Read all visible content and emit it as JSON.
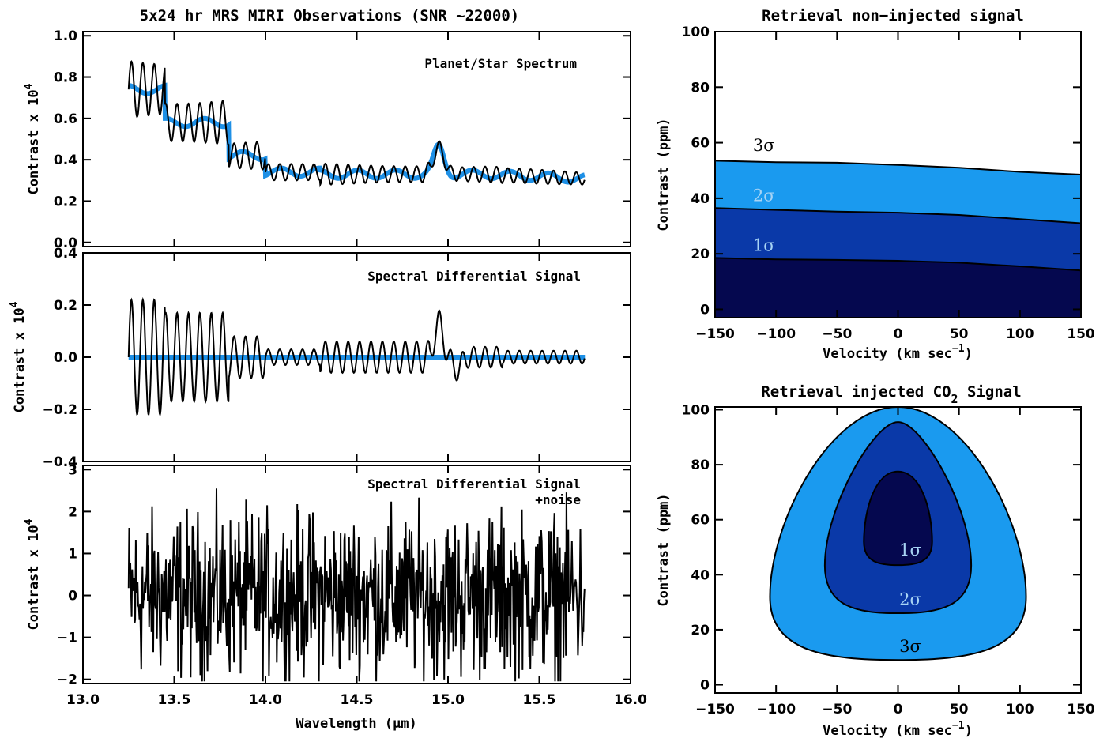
{
  "chart_data": [
    {
      "type": "line",
      "title": "5x24 hr MRS MIRI Observations (SNR ~22000)",
      "annotation": "Planet/Star Spectrum",
      "ylabel": "Contrast x 10",
      "ylabel_exp": "4",
      "xlim": [
        13.0,
        16.0
      ],
      "ylim": [
        -0.02,
        1.02
      ],
      "xticks": [
        13.0,
        13.5,
        14.0,
        14.5,
        15.0,
        15.5,
        16.0
      ],
      "yticks": [
        0.0,
        0.2,
        0.4,
        0.6,
        0.8,
        1.0
      ],
      "ytick_labels": [
        "0.0",
        "0.2",
        "0.4",
        "0.6",
        "0.8",
        "1.0"
      ],
      "series": [
        {
          "color": "#1e90e6",
          "x_range": [
            13.25,
            15.75
          ],
          "style": "smoothed model"
        },
        {
          "color": "#000000",
          "x_range": [
            13.25,
            15.75
          ],
          "style": "high-resolution spectrum"
        }
      ]
    },
    {
      "type": "line",
      "title": "",
      "annotation": "Spectral Differential Signal",
      "ylabel": "Contrast x 10",
      "ylabel_exp": "4",
      "xlim": [
        13.0,
        16.0
      ],
      "ylim": [
        -0.4,
        0.4
      ],
      "xticks": [
        13.0,
        13.5,
        14.0,
        14.5,
        15.0,
        15.5,
        16.0
      ],
      "yticks": [
        -0.4,
        -0.2,
        0.0,
        0.2,
        0.4
      ],
      "ytick_labels": [
        "−0.4",
        "−0.2",
        "0.0",
        "0.2",
        "0.4"
      ],
      "series": [
        {
          "color": "#1e90e6",
          "x_range": [
            13.25,
            15.75
          ],
          "style": "zero baseline"
        },
        {
          "color": "#000000",
          "x_range": [
            13.25,
            15.75
          ],
          "style": "differential signal"
        }
      ]
    },
    {
      "type": "line",
      "title": "",
      "annotation": "Spectral Differential Signal",
      "annotation2": "+noise",
      "ylabel": "Contrast x 10",
      "ylabel_exp": "4",
      "xlabel": "Wavelength (μm)",
      "xlim": [
        13.0,
        16.0
      ],
      "ylim": [
        -2.1,
        3.1
      ],
      "xticks": [
        13.0,
        13.5,
        14.0,
        14.5,
        15.0,
        15.5,
        16.0
      ],
      "xtick_labels": [
        "13.0",
        "13.5",
        "14.0",
        "14.5",
        "15.0",
        "15.5",
        "16.0"
      ],
      "yticks": [
        -2,
        -1,
        0,
        1,
        2,
        3
      ],
      "ytick_labels": [
        "−2",
        "−1",
        "0",
        "1",
        "2",
        "3"
      ],
      "series": [
        {
          "color": "#000000",
          "x_range": [
            13.25,
            15.75
          ],
          "style": "signal with noise"
        }
      ]
    },
    {
      "type": "area",
      "title": "Retrieval non−injected signal",
      "xlabel": "Velocity (km sec",
      "xlabel_exp": "−1",
      "xlabel_close": ")",
      "ylabel": "Contrast (ppm)",
      "xlim": [
        -150,
        150
      ],
      "ylim": [
        -3,
        100
      ],
      "xticks": [
        -150,
        -100,
        -50,
        0,
        50,
        100,
        150
      ],
      "xtick_labels": [
        "−150",
        "−100",
        "−50",
        "0",
        "50",
        "100",
        "150"
      ],
      "yticks": [
        0,
        20,
        40,
        60,
        80,
        100
      ],
      "ytick_labels": [
        "0",
        "20",
        "40",
        "60",
        "80",
        "100"
      ],
      "x": [
        -150,
        -100,
        -50,
        0,
        50,
        100,
        150
      ],
      "bands": [
        {
          "label": "3σ",
          "color": "#1a9aef",
          "upper": [
            53.5,
            53,
            52.8,
            52,
            51,
            49.5,
            48.5
          ]
        },
        {
          "label": "2σ",
          "color": "#0a39a8",
          "upper": [
            36.5,
            35.8,
            35.2,
            34.8,
            34,
            32.5,
            31
          ]
        },
        {
          "label": "1σ",
          "color": "#05084f",
          "upper": [
            18.5,
            18,
            17.8,
            17.5,
            16.8,
            15.5,
            14
          ]
        }
      ],
      "band_label_colors": [
        "#000000",
        "#a8d4f5",
        "#a8d4f5"
      ],
      "band_label_positions": [
        [
          -110,
          57
        ],
        [
          -110,
          39
        ],
        [
          -110,
          21
        ]
      ]
    },
    {
      "type": "area",
      "title": "Retrieval injected CO",
      "title_sub": "2",
      "title_end": " Signal",
      "xlabel": "Velocity (km sec",
      "xlabel_exp": "−1",
      "xlabel_close": ")",
      "ylabel": "Contrast (ppm)",
      "xlim": [
        -150,
        150
      ],
      "ylim": [
        -3,
        101
      ],
      "xticks": [
        -150,
        -100,
        -50,
        0,
        50,
        100,
        150
      ],
      "xtick_labels": [
        "−150",
        "−100",
        "−50",
        "0",
        "50",
        "100",
        "150"
      ],
      "yticks": [
        0,
        20,
        40,
        60,
        80,
        100
      ],
      "ytick_labels": [
        "0",
        "20",
        "40",
        "60",
        "80",
        "100"
      ],
      "contours": [
        {
          "label": "3σ",
          "color": "#1a9aef",
          "cx": 0,
          "top": 101,
          "bottom": 9,
          "half_width_top": 55,
          "half_width_bottom": 105
        },
        {
          "label": "2σ",
          "color": "#0a39a8",
          "cx": 0,
          "top": 95.5,
          "bottom": 26,
          "half_width_top": 20,
          "half_width_bottom": 60
        },
        {
          "label": "1σ",
          "color": "#05084f",
          "cx": 0,
          "top": 77.5,
          "bottom": 43.5,
          "half_width_top": 20,
          "half_width_bottom": 28
        }
      ],
      "contour_label_colors": [
        "#000000",
        "#a8d4f5",
        "#a8d4f5"
      ],
      "contour_label_positions": [
        [
          10,
          12
        ],
        [
          10,
          29
        ],
        [
          10,
          47
        ]
      ]
    }
  ]
}
